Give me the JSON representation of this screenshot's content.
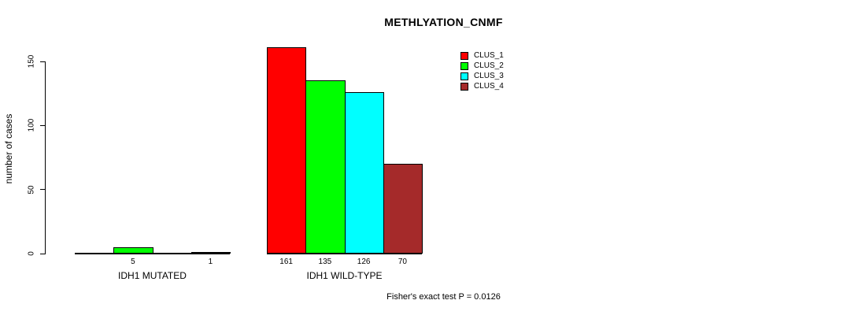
{
  "chart_data": {
    "type": "bar",
    "title": "METHLYATION_CNMF",
    "xlabel": "",
    "ylabel": "number of cases",
    "yticks": [
      0,
      50,
      100,
      150
    ],
    "ylim": [
      0,
      165
    ],
    "grid": false,
    "legend_position": "top-right",
    "legend": [
      {
        "name": "CLUS_1",
        "color": "#FF0000"
      },
      {
        "name": "CLUS_2",
        "color": "#00FF00"
      },
      {
        "name": "CLUS_3",
        "color": "#00FFFF"
      },
      {
        "name": "CLUS_4",
        "color": "#A52A2A"
      }
    ],
    "groups": [
      {
        "label": "IDH1 MUTATED",
        "values": [
          0,
          5,
          0,
          1
        ],
        "value_labels": [
          "",
          "5",
          "",
          "1"
        ]
      },
      {
        "label": "IDH1 WILD-TYPE",
        "values": [
          161,
          135,
          126,
          70
        ],
        "value_labels": [
          "161",
          "135",
          "126",
          "70"
        ]
      }
    ],
    "annotation": "Fisher's exact test P = 0.0126"
  }
}
